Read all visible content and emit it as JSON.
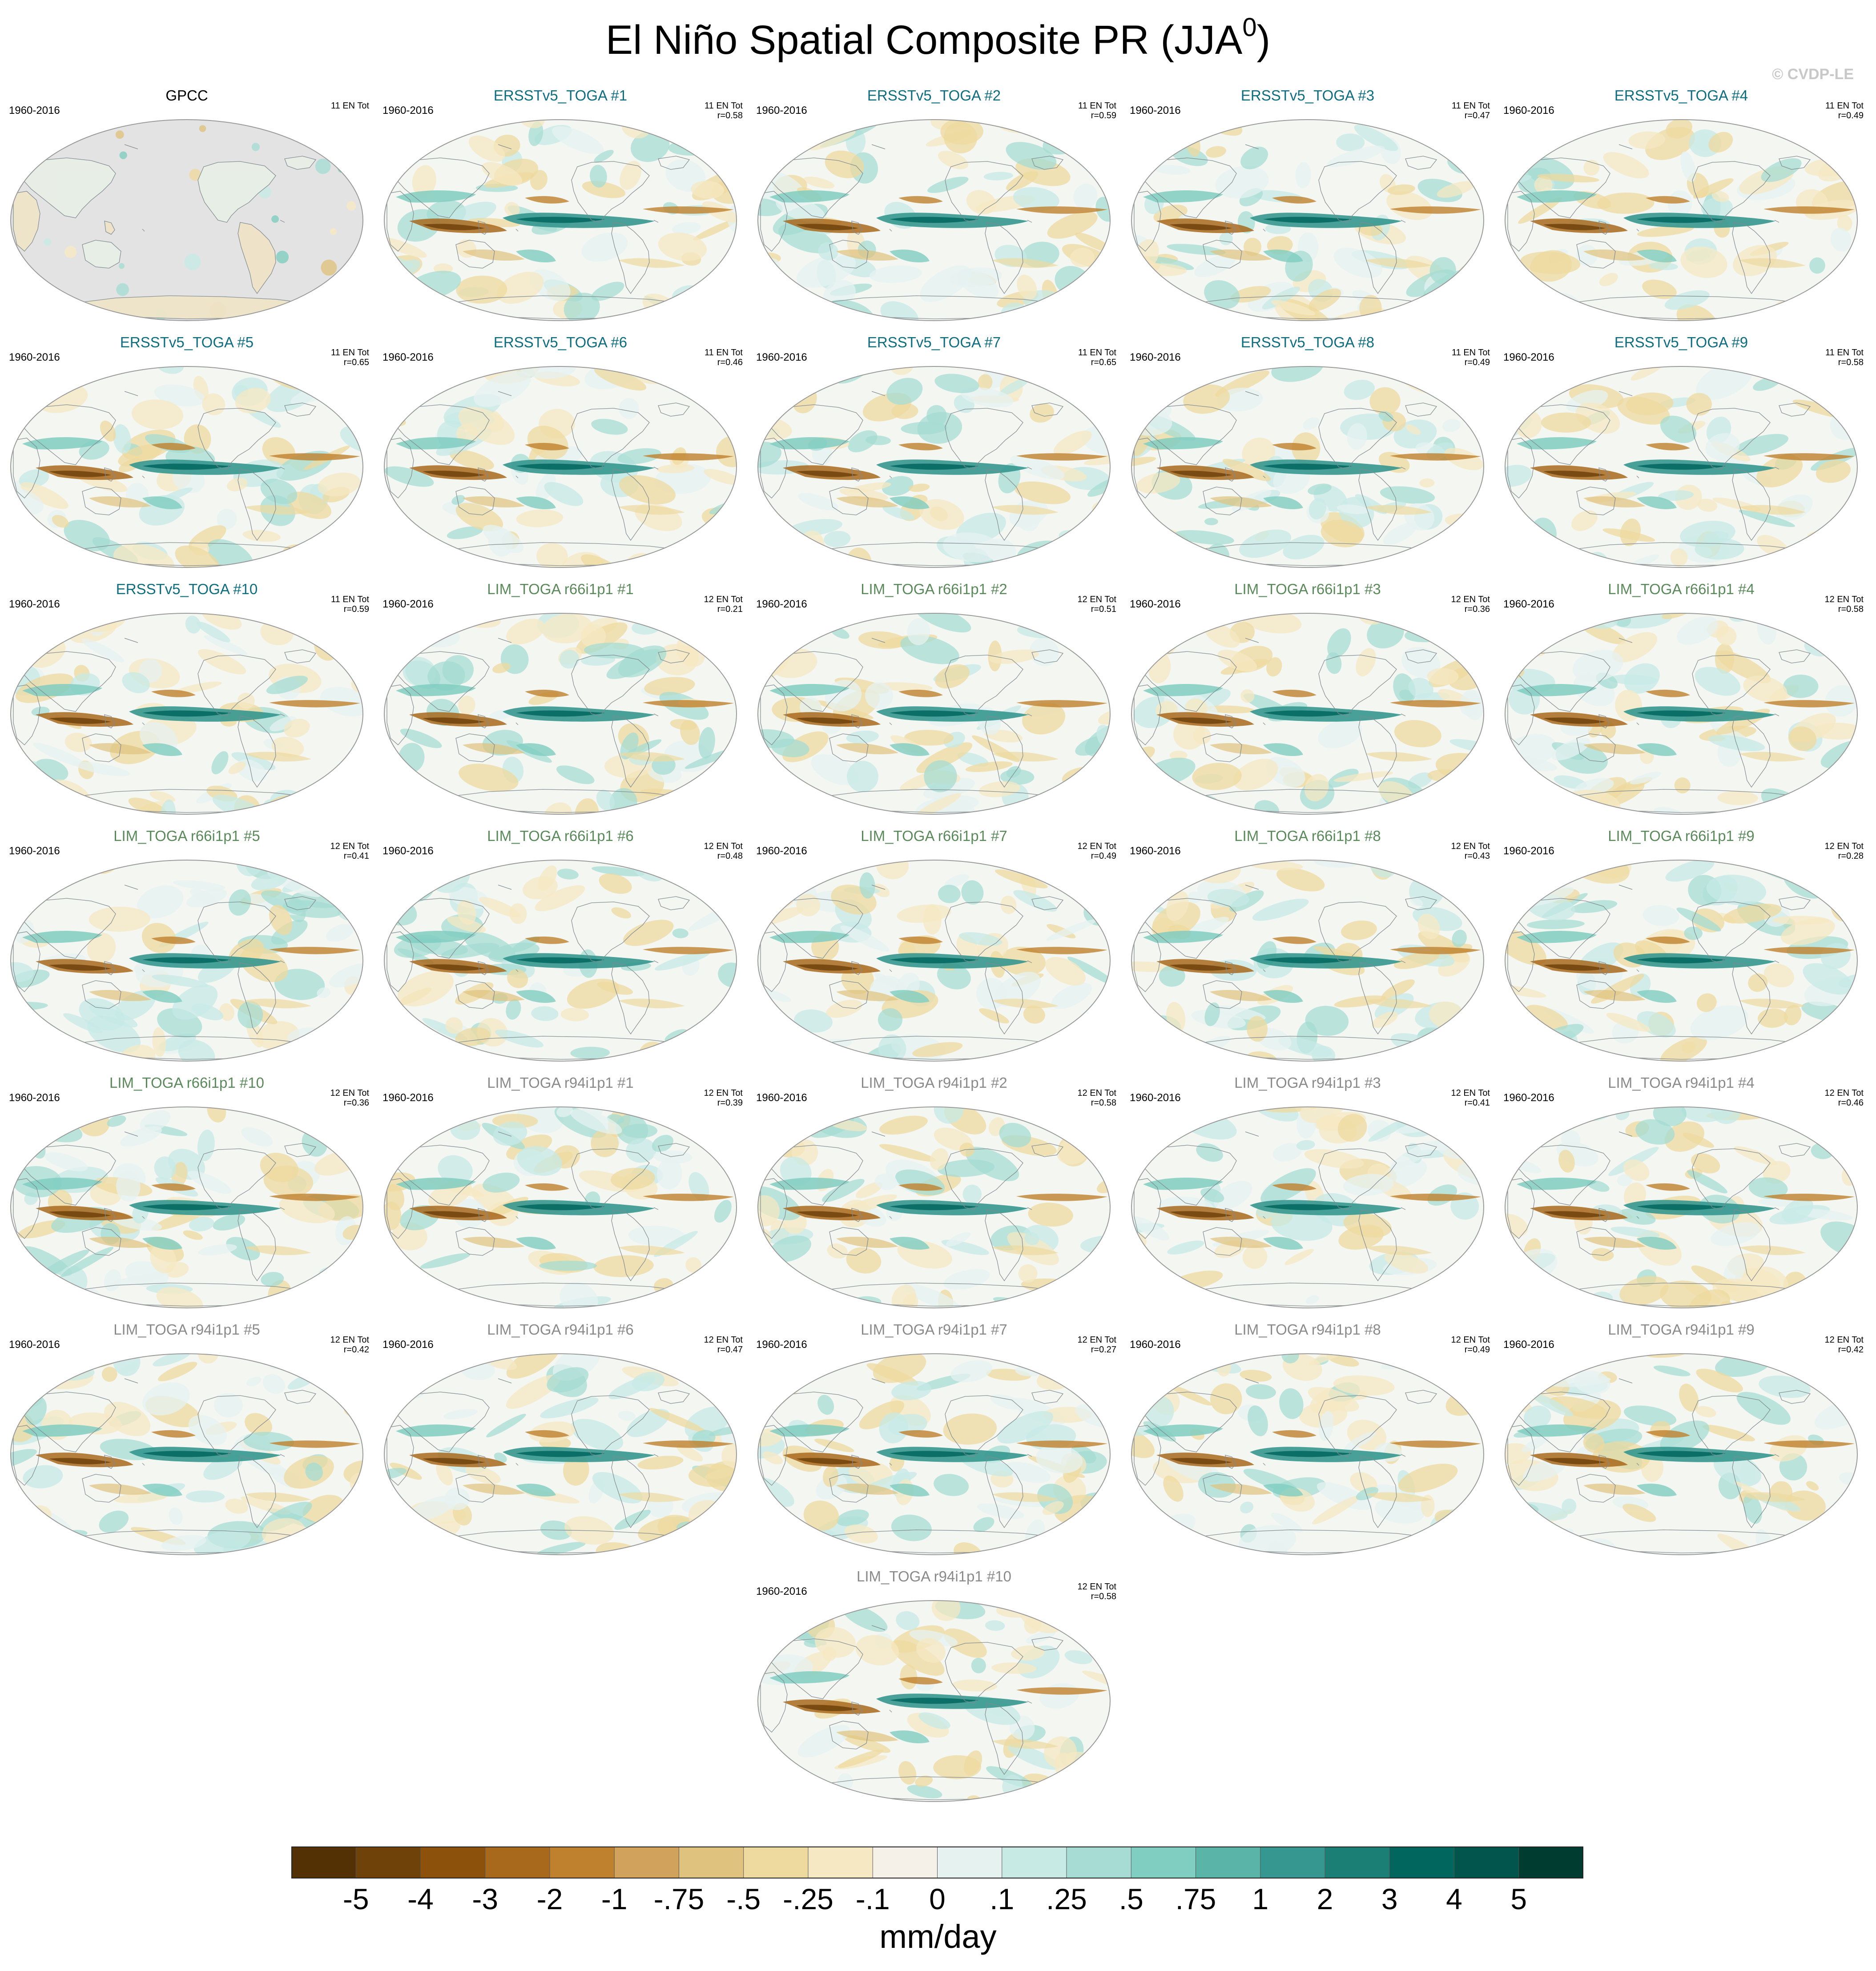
{
  "title": "El Niño Spatial Composite PR (JJA",
  "title_sup": "0",
  "title_close": ")",
  "watermark": "© CVDP-LE",
  "colors": {
    "obs_title": "#000000",
    "ersst_title": "#0e6e80",
    "lim66_title": "#5a8a5a",
    "lim94_title": "#8a8a8a",
    "ocean_obs": "#e3e3e3",
    "coast": "#7f8a8f"
  },
  "panels": [
    {
      "title": "GPCC",
      "group": "obs",
      "years": "1960-2016",
      "count": "11 EN Tot",
      "r": ""
    },
    {
      "title": "ERSSTv5_TOGA #1",
      "group": "ersst",
      "years": "1960-2016",
      "count": "11 EN Tot",
      "r": "r=0.58"
    },
    {
      "title": "ERSSTv5_TOGA #2",
      "group": "ersst",
      "years": "1960-2016",
      "count": "11 EN Tot",
      "r": "r=0.59"
    },
    {
      "title": "ERSSTv5_TOGA #3",
      "group": "ersst",
      "years": "1960-2016",
      "count": "11 EN Tot",
      "r": "r=0.47"
    },
    {
      "title": "ERSSTv5_TOGA #4",
      "group": "ersst",
      "years": "1960-2016",
      "count": "11 EN Tot",
      "r": "r=0.49"
    },
    {
      "title": "ERSSTv5_TOGA #5",
      "group": "ersst",
      "years": "1960-2016",
      "count": "11 EN Tot",
      "r": "r=0.65"
    },
    {
      "title": "ERSSTv5_TOGA #6",
      "group": "ersst",
      "years": "1960-2016",
      "count": "11 EN Tot",
      "r": "r=0.46"
    },
    {
      "title": "ERSSTv5_TOGA #7",
      "group": "ersst",
      "years": "1960-2016",
      "count": "11 EN Tot",
      "r": "r=0.65"
    },
    {
      "title": "ERSSTv5_TOGA #8",
      "group": "ersst",
      "years": "1960-2016",
      "count": "11 EN Tot",
      "r": "r=0.49"
    },
    {
      "title": "ERSSTv5_TOGA #9",
      "group": "ersst",
      "years": "1960-2016",
      "count": "11 EN Tot",
      "r": "r=0.58"
    },
    {
      "title": "ERSSTv5_TOGA #10",
      "group": "ersst",
      "years": "1960-2016",
      "count": "11 EN Tot",
      "r": "r=0.59"
    },
    {
      "title": "LIM_TOGA r66i1p1 #1",
      "group": "lim66",
      "years": "1960-2016",
      "count": "12 EN Tot",
      "r": "r=0.21"
    },
    {
      "title": "LIM_TOGA r66i1p1 #2",
      "group": "lim66",
      "years": "1960-2016",
      "count": "12 EN Tot",
      "r": "r=0.51"
    },
    {
      "title": "LIM_TOGA r66i1p1 #3",
      "group": "lim66",
      "years": "1960-2016",
      "count": "12 EN Tot",
      "r": "r=0.36"
    },
    {
      "title": "LIM_TOGA r66i1p1 #4",
      "group": "lim66",
      "years": "1960-2016",
      "count": "12 EN Tot",
      "r": "r=0.58"
    },
    {
      "title": "LIM_TOGA r66i1p1 #5",
      "group": "lim66",
      "years": "1960-2016",
      "count": "12 EN Tot",
      "r": "r=0.41"
    },
    {
      "title": "LIM_TOGA r66i1p1 #6",
      "group": "lim66",
      "years": "1960-2016",
      "count": "12 EN Tot",
      "r": "r=0.48"
    },
    {
      "title": "LIM_TOGA r66i1p1 #7",
      "group": "lim66",
      "years": "1960-2016",
      "count": "12 EN Tot",
      "r": "r=0.49"
    },
    {
      "title": "LIM_TOGA r66i1p1 #8",
      "group": "lim66",
      "years": "1960-2016",
      "count": "12 EN Tot",
      "r": "r=0.43"
    },
    {
      "title": "LIM_TOGA r66i1p1 #9",
      "group": "lim66",
      "years": "1960-2016",
      "count": "12 EN Tot",
      "r": "r=0.28"
    },
    {
      "title": "LIM_TOGA r66i1p1 #10",
      "group": "lim66",
      "years": "1960-2016",
      "count": "12 EN Tot",
      "r": "r=0.36"
    },
    {
      "title": "LIM_TOGA r94i1p1 #1",
      "group": "lim94",
      "years": "1960-2016",
      "count": "12 EN Tot",
      "r": "r=0.39"
    },
    {
      "title": "LIM_TOGA r94i1p1 #2",
      "group": "lim94",
      "years": "1960-2016",
      "count": "12 EN Tot",
      "r": "r=0.58"
    },
    {
      "title": "LIM_TOGA r94i1p1 #3",
      "group": "lim94",
      "years": "1960-2016",
      "count": "12 EN Tot",
      "r": "r=0.41"
    },
    {
      "title": "LIM_TOGA r94i1p1 #4",
      "group": "lim94",
      "years": "1960-2016",
      "count": "12 EN Tot",
      "r": "r=0.46"
    },
    {
      "title": "LIM_TOGA r94i1p1 #5",
      "group": "lim94",
      "years": "1960-2016",
      "count": "12 EN Tot",
      "r": "r=0.42"
    },
    {
      "title": "LIM_TOGA r94i1p1 #6",
      "group": "lim94",
      "years": "1960-2016",
      "count": "12 EN Tot",
      "r": "r=0.47"
    },
    {
      "title": "LIM_TOGA r94i1p1 #7",
      "group": "lim94",
      "years": "1960-2016",
      "count": "12 EN Tot",
      "r": "r=0.27"
    },
    {
      "title": "LIM_TOGA r94i1p1 #8",
      "group": "lim94",
      "years": "1960-2016",
      "count": "12 EN Tot",
      "r": "r=0.49"
    },
    {
      "title": "LIM_TOGA r94i1p1 #9",
      "group": "lim94",
      "years": "1960-2016",
      "count": "12 EN Tot",
      "r": "r=0.42"
    },
    {
      "title": "LIM_TOGA r94i1p1 #10",
      "group": "lim94",
      "years": "1960-2016",
      "count": "12 EN Tot",
      "r": "r=0.58"
    }
  ],
  "colorbar": {
    "labels": [
      "-5",
      "-4",
      "-3",
      "-2",
      "-1",
      "-.75",
      "-.5",
      "-.25",
      "-.1",
      "0",
      ".1",
      ".25",
      ".5",
      ".75",
      "1",
      "2",
      "3",
      "4",
      "5"
    ],
    "colors": [
      "#543005",
      "#6f420a",
      "#8c510a",
      "#a8691d",
      "#bf812d",
      "#d1a25b",
      "#dfc27d",
      "#eeda9f",
      "#f6e8c3",
      "#f5f1e8",
      "#e6f2f0",
      "#c7eae5",
      "#a6dcd3",
      "#80cdc1",
      "#5ab4a8",
      "#35978f",
      "#1c7f75",
      "#01665e",
      "#01554c",
      "#003c30"
    ],
    "units": "mm/day"
  }
}
